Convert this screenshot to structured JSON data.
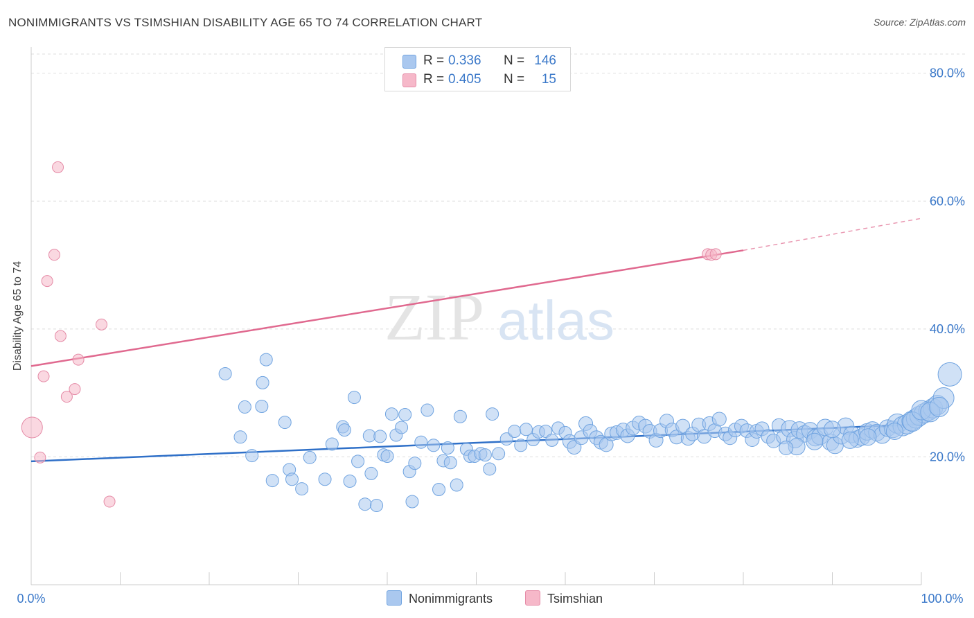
{
  "title": "NONIMMIGRANTS VS TSIMSHIAN DISABILITY AGE 65 TO 74 CORRELATION CHART",
  "source": "Source: ZipAtlas.com",
  "watermark": {
    "part1": "ZIP",
    "part2": "atlas"
  },
  "legend_top": [
    {
      "r_label": "R =",
      "r_value": "0.336",
      "n_label": "N =",
      "n_value": "146",
      "color": "#aac8ef"
    },
    {
      "r_label": "R =",
      "r_value": "0.405",
      "n_label": "N =",
      "n_value": "15",
      "color": "#f6b8c9"
    }
  ],
  "chart_data": {
    "type": "scatter",
    "title": "NONIMMIGRANTS VS TSIMSHIAN DISABILITY AGE 65 TO 74 CORRELATION CHART",
    "xlabel": "",
    "ylabel": "Disability Age 65 to 74",
    "xlim": [
      0,
      100
    ],
    "ylim": [
      0,
      83
    ],
    "x_tick_labels": [
      "0.0%",
      "100.0%"
    ],
    "y_ticks": [
      20,
      40,
      60,
      80
    ],
    "y_tick_labels": [
      "20.0%",
      "40.0%",
      "60.0%",
      "80.0%"
    ],
    "grid": "horizontal dashed",
    "legend_placement": "top-center and bottom",
    "series": [
      {
        "name": "Nonimmigrants",
        "color": "#6fa3e0",
        "fill": "#aac8ef",
        "points": [
          [
            21.8,
            33.0
          ],
          [
            26.4,
            35.2
          ],
          [
            26.0,
            31.6
          ],
          [
            24.0,
            27.8
          ],
          [
            25.9,
            27.9
          ],
          [
            23.5,
            23.1
          ],
          [
            24.8,
            20.2
          ],
          [
            28.5,
            25.4
          ],
          [
            27.1,
            16.3
          ],
          [
            29.0,
            18.0
          ],
          [
            29.3,
            16.5
          ],
          [
            30.4,
            15.0
          ],
          [
            31.3,
            19.9
          ],
          [
            33.0,
            16.5
          ],
          [
            33.8,
            22.0
          ],
          [
            35.0,
            24.7
          ],
          [
            35.2,
            24.2
          ],
          [
            35.8,
            16.2
          ],
          [
            36.3,
            29.3
          ],
          [
            36.7,
            19.3
          ],
          [
            37.5,
            12.6
          ],
          [
            38.0,
            23.3
          ],
          [
            38.2,
            17.4
          ],
          [
            38.8,
            12.4
          ],
          [
            39.2,
            23.2
          ],
          [
            39.6,
            20.3
          ],
          [
            40.0,
            20.1
          ],
          [
            40.5,
            26.7
          ],
          [
            41.0,
            23.4
          ],
          [
            41.6,
            24.6
          ],
          [
            42.0,
            26.6
          ],
          [
            42.5,
            17.7
          ],
          [
            42.8,
            13.0
          ],
          [
            43.1,
            19.0
          ],
          [
            43.8,
            22.3
          ],
          [
            44.5,
            27.3
          ],
          [
            45.2,
            21.8
          ],
          [
            45.8,
            14.9
          ],
          [
            46.3,
            19.4
          ],
          [
            46.8,
            21.4
          ],
          [
            47.1,
            19.1
          ],
          [
            47.8,
            15.6
          ],
          [
            48.2,
            26.3
          ],
          [
            48.9,
            21.2
          ],
          [
            49.3,
            20.1
          ],
          [
            49.8,
            20.1
          ],
          [
            50.5,
            20.5
          ],
          [
            51.0,
            20.3
          ],
          [
            51.5,
            18.1
          ],
          [
            51.8,
            26.7
          ],
          [
            52.5,
            20.5
          ],
          [
            53.4,
            22.8
          ],
          [
            54.3,
            24.0
          ],
          [
            55.0,
            21.8
          ],
          [
            55.6,
            24.3
          ],
          [
            56.4,
            22.7
          ],
          [
            57.0,
            23.9
          ],
          [
            57.8,
            24.0
          ],
          [
            58.5,
            22.6
          ],
          [
            59.2,
            24.5
          ],
          [
            60.0,
            23.8
          ],
          [
            60.5,
            22.4
          ],
          [
            61.0,
            21.5
          ],
          [
            61.8,
            23.0
          ],
          [
            62.3,
            25.2
          ],
          [
            62.8,
            24.0
          ],
          [
            63.5,
            23.0
          ],
          [
            64.0,
            22.3
          ],
          [
            64.6,
            21.9
          ],
          [
            65.2,
            23.6
          ],
          [
            65.8,
            23.8
          ],
          [
            66.5,
            24.2
          ],
          [
            67.0,
            23.3
          ],
          [
            67.6,
            24.5
          ],
          [
            68.3,
            25.3
          ],
          [
            69.0,
            24.8
          ],
          [
            69.5,
            24.0
          ],
          [
            70.2,
            22.6
          ],
          [
            70.7,
            24.1
          ],
          [
            71.4,
            25.6
          ],
          [
            72.0,
            24.2
          ],
          [
            72.5,
            23.1
          ],
          [
            73.2,
            24.8
          ],
          [
            73.8,
            22.9
          ],
          [
            74.3,
            23.6
          ],
          [
            75.0,
            25.0
          ],
          [
            75.6,
            23.2
          ],
          [
            76.2,
            25.2
          ],
          [
            76.8,
            24.1
          ],
          [
            77.3,
            25.9
          ],
          [
            78.0,
            23.6
          ],
          [
            78.5,
            23.0
          ],
          [
            79.1,
            24.2
          ],
          [
            79.8,
            24.8
          ],
          [
            80.4,
            24.1
          ],
          [
            81.0,
            22.7
          ],
          [
            81.5,
            24.0
          ],
          [
            82.1,
            24.4
          ],
          [
            82.8,
            23.2
          ],
          [
            83.4,
            22.5
          ],
          [
            84.0,
            24.9
          ],
          [
            84.5,
            23.1
          ],
          [
            85.2,
            24.4
          ],
          [
            85.8,
            22.7
          ],
          [
            86.3,
            24.2
          ],
          [
            86.9,
            23.6
          ],
          [
            87.5,
            24.1
          ],
          [
            88.1,
            23.0
          ],
          [
            88.6,
            23.2
          ],
          [
            89.2,
            24.6
          ],
          [
            89.8,
            22.3
          ],
          [
            90.3,
            21.8
          ],
          [
            91.0,
            23.3
          ],
          [
            91.5,
            24.8
          ],
          [
            92.2,
            23.5
          ],
          [
            92.8,
            22.8
          ],
          [
            93.3,
            23.1
          ],
          [
            93.9,
            23.9
          ],
          [
            94.5,
            24.2
          ],
          [
            95.0,
            23.8
          ],
          [
            95.6,
            23.4
          ],
          [
            96.2,
            24.5
          ],
          [
            96.8,
            24.3
          ],
          [
            97.3,
            25.2
          ],
          [
            97.9,
            24.8
          ],
          [
            98.4,
            25.1
          ],
          [
            98.9,
            25.6
          ],
          [
            99.4,
            26.0
          ],
          [
            99.8,
            26.4
          ],
          [
            100.3,
            26.8
          ],
          [
            100.8,
            27.2
          ],
          [
            101.3,
            27.6
          ],
          [
            101.8,
            28.1
          ],
          [
            102.5,
            29.2
          ],
          [
            103.2,
            32.9
          ],
          [
            88.0,
            22.4
          ],
          [
            90.0,
            24.3
          ],
          [
            94.0,
            23.1
          ],
          [
            97.0,
            24.0
          ],
          [
            99.0,
            25.5
          ],
          [
            100.0,
            27.3
          ],
          [
            101.0,
            27.0
          ],
          [
            102.0,
            27.8
          ],
          [
            86.0,
            21.6
          ],
          [
            84.8,
            21.4
          ],
          [
            92.0,
            22.6
          ]
        ],
        "trend": {
          "from": [
            0,
            19.3
          ],
          "to": [
            100,
            25.1
          ],
          "extend_dashed_to": null
        }
      },
      {
        "name": "Tsimshian",
        "color": "#e58aa6",
        "fill": "#f6b8c9",
        "points": [
          [
            0.1,
            24.6
          ],
          [
            1.0,
            19.9
          ],
          [
            1.4,
            32.6
          ],
          [
            1.8,
            47.5
          ],
          [
            2.6,
            51.6
          ],
          [
            3.0,
            65.3
          ],
          [
            3.3,
            38.9
          ],
          [
            4.0,
            29.4
          ],
          [
            4.9,
            30.6
          ],
          [
            5.3,
            35.2
          ],
          [
            7.9,
            40.7
          ],
          [
            8.8,
            13.0
          ],
          [
            76.0,
            51.7
          ],
          [
            76.4,
            51.6
          ],
          [
            76.9,
            51.7
          ]
        ],
        "trend": {
          "from": [
            0,
            34.2
          ],
          "to": [
            80,
            52.3
          ],
          "extend_dashed_to": [
            100,
            57.3
          ]
        }
      }
    ]
  },
  "bottom_legend": [
    {
      "label": "Nonimmigrants",
      "color": "#aac8ef"
    },
    {
      "label": "Tsimshian",
      "color": "#f6b8c9"
    }
  ]
}
